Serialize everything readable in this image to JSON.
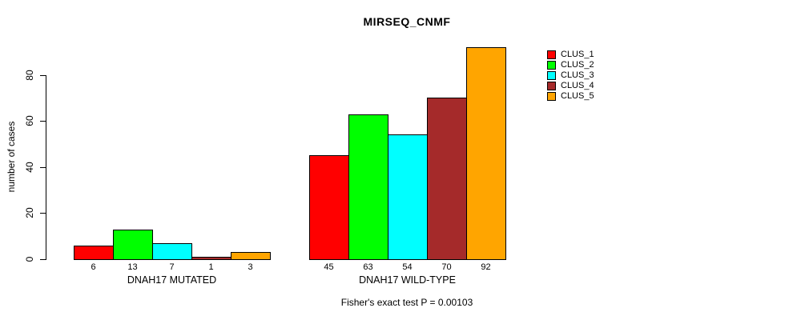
{
  "title": "MIRSEQ_CNMF",
  "y_axis": {
    "label": "number of cases"
  },
  "footer": "Fisher's exact test P = 0.00103",
  "legend": [
    {
      "label": "CLUS_1",
      "color": "#FF0000"
    },
    {
      "label": "CLUS_2",
      "color": "#00FF00"
    },
    {
      "label": "CLUS_3",
      "color": "#00FFFF"
    },
    {
      "label": "CLUS_4",
      "color": "#A52A2A"
    },
    {
      "label": "CLUS_5",
      "color": "#FFA500"
    }
  ],
  "chart_data": {
    "type": "bar",
    "title": "MIRSEQ_CNMF",
    "ylabel": "number of cases",
    "xlabel": "",
    "ylim": [
      0,
      92
    ],
    "yticks": [
      0,
      20,
      40,
      60,
      80
    ],
    "grid": false,
    "legend_position": "right",
    "categories": [
      "DNAH17 MUTATED",
      "DNAH17 WILD-TYPE"
    ],
    "series": [
      {
        "name": "CLUS_1",
        "color": "#FF0000",
        "values": [
          6,
          45
        ]
      },
      {
        "name": "CLUS_2",
        "color": "#00FF00",
        "values": [
          13,
          63
        ]
      },
      {
        "name": "CLUS_3",
        "color": "#00FFFF",
        "values": [
          7,
          54
        ]
      },
      {
        "name": "CLUS_4",
        "color": "#A52A2A",
        "values": [
          1,
          70
        ]
      },
      {
        "name": "CLUS_5",
        "color": "#FFA500",
        "values": [
          3,
          92
        ]
      }
    ],
    "bar_value_labels": [
      [
        6,
        13,
        7,
        1,
        3
      ],
      [
        45,
        63,
        54,
        70,
        92
      ]
    ],
    "annotation": "Fisher's exact test P = 0.00103"
  }
}
